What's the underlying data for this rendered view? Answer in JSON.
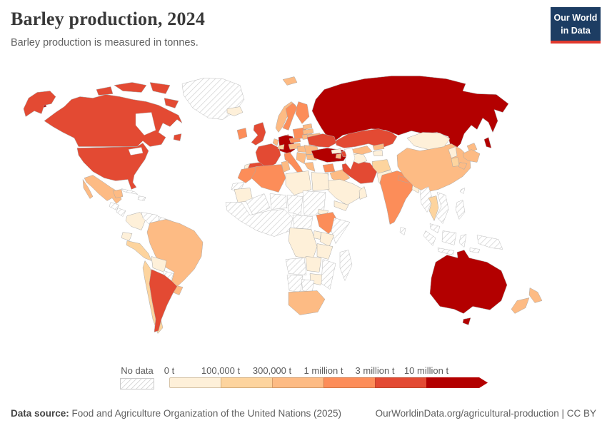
{
  "header": {
    "title": "Barley production, 2024",
    "subtitle": "Barley production is measured in tonnes."
  },
  "logo": {
    "line1": "Our World",
    "line2": "in Data",
    "bg_color": "#1d3d63",
    "accent_color": "#e0392e"
  },
  "footer": {
    "source_label": "Data source:",
    "source_text": " Food and Agriculture Organization of the United Nations (2025)",
    "link_text": "OurWorldinData.org/agricultural-production | CC BY"
  },
  "chart_data": {
    "type": "choropleth-map",
    "title": "Barley production, 2024",
    "unit": "tonnes",
    "projection": "World",
    "legend": {
      "no_data_label": "No data",
      "tick_labels": [
        "0 t",
        "100,000 t",
        "300,000 t",
        "1 million t",
        "3 million t",
        "10 million t"
      ],
      "bin_colors": [
        "#fef0d9",
        "#fdd49e",
        "#fdbb84",
        "#fc8d59",
        "#e34a33",
        "#b30000"
      ],
      "no_data_pattern": "gray-diagonal-hatch"
    },
    "bins_meaning": "bin index = production band between consecutive tick labels; 5 = 10 million t and above",
    "entities": [
      {
        "name": "Russia",
        "bin": 5
      },
      {
        "name": "Canada",
        "bin": 4
      },
      {
        "name": "United States",
        "bin": 4
      },
      {
        "name": "Greenland",
        "bin": "no_data"
      },
      {
        "name": "Mexico",
        "bin": 2
      },
      {
        "name": "Guatemala",
        "bin": "no_data"
      },
      {
        "name": "Nicaragua",
        "bin": "no_data"
      },
      {
        "name": "Cuba",
        "bin": "no_data"
      },
      {
        "name": "Haiti",
        "bin": "no_data"
      },
      {
        "name": "Colombia",
        "bin": 0
      },
      {
        "name": "Venezuela",
        "bin": "no_data"
      },
      {
        "name": "Guyana",
        "bin": "no_data"
      },
      {
        "name": "Ecuador",
        "bin": 0
      },
      {
        "name": "Peru",
        "bin": 1
      },
      {
        "name": "Brazil",
        "bin": 2
      },
      {
        "name": "Bolivia",
        "bin": 0
      },
      {
        "name": "Paraguay",
        "bin": "no_data"
      },
      {
        "name": "Uruguay",
        "bin": 2
      },
      {
        "name": "Chile",
        "bin": 1
      },
      {
        "name": "Argentina",
        "bin": 4
      },
      {
        "name": "Iceland",
        "bin": 0
      },
      {
        "name": "United Kingdom",
        "bin": 4
      },
      {
        "name": "Ireland",
        "bin": 3
      },
      {
        "name": "Portugal",
        "bin": 0
      },
      {
        "name": "Spain",
        "bin": 4
      },
      {
        "name": "France",
        "bin": 4
      },
      {
        "name": "Norway",
        "bin": 2
      },
      {
        "name": "Sweden",
        "bin": 3
      },
      {
        "name": "Finland",
        "bin": 3
      },
      {
        "name": "Denmark",
        "bin": 4
      },
      {
        "name": "Germany",
        "bin": 5
      },
      {
        "name": "Netherlands",
        "bin": 2
      },
      {
        "name": "Switzerland",
        "bin": 1
      },
      {
        "name": "Italy",
        "bin": 3
      },
      {
        "name": "Austria",
        "bin": 2
      },
      {
        "name": "Czechia",
        "bin": 3
      },
      {
        "name": "Poland",
        "bin": 3
      },
      {
        "name": "Estonia",
        "bin": 2
      },
      {
        "name": "Latvia",
        "bin": 2
      },
      {
        "name": "Lithuania",
        "bin": 2
      },
      {
        "name": "Belarus",
        "bin": 2
      },
      {
        "name": "Ukraine",
        "bin": 4
      },
      {
        "name": "Hungary",
        "bin": 2
      },
      {
        "name": "Romania",
        "bin": 2
      },
      {
        "name": "Serbia",
        "bin": 2
      },
      {
        "name": "Bulgaria",
        "bin": 2
      },
      {
        "name": "Greece",
        "bin": 2
      },
      {
        "name": "Turkey",
        "bin": 5
      },
      {
        "name": "Georgia",
        "bin": 0
      },
      {
        "name": "Azerbaijan",
        "bin": 4
      },
      {
        "name": "Armenia",
        "bin": 2
      },
      {
        "name": "Syria",
        "bin": 3
      },
      {
        "name": "Iraq",
        "bin": 2
      },
      {
        "name": "Jordan",
        "bin": 0
      },
      {
        "name": "Saudi Arabia",
        "bin": 0
      },
      {
        "name": "Yemen",
        "bin": 0
      },
      {
        "name": "Oman",
        "bin": 0
      },
      {
        "name": "Iran",
        "bin": 4
      },
      {
        "name": "Kazakhstan",
        "bin": 4
      },
      {
        "name": "Turkmenistan",
        "bin": 0
      },
      {
        "name": "Uzbekistan",
        "bin": 2
      },
      {
        "name": "Kyrgyzstan",
        "bin": 2
      },
      {
        "name": "Tajikistan",
        "bin": 0
      },
      {
        "name": "Afghanistan",
        "bin": 1
      },
      {
        "name": "Pakistan",
        "bin": 0
      },
      {
        "name": "India",
        "bin": 3
      },
      {
        "name": "Nepal",
        "bin": 3
      },
      {
        "name": "Bangladesh",
        "bin": 0
      },
      {
        "name": "Sri Lanka",
        "bin": "no_data"
      },
      {
        "name": "China",
        "bin": 2
      },
      {
        "name": "Mongolia",
        "bin": 0
      },
      {
        "name": "North Korea",
        "bin": 0
      },
      {
        "name": "South Korea",
        "bin": 1
      },
      {
        "name": "Japan",
        "bin": 2
      },
      {
        "name": "Taiwan",
        "bin": "no_data"
      },
      {
        "name": "Myanmar",
        "bin": "no_data"
      },
      {
        "name": "Thailand",
        "bin": 1
      },
      {
        "name": "Vietnam",
        "bin": "no_data"
      },
      {
        "name": "Malaysia",
        "bin": "no_data"
      },
      {
        "name": "Indonesia",
        "bin": "no_data"
      },
      {
        "name": "Philippines",
        "bin": "no_data"
      },
      {
        "name": "Papua New Guinea",
        "bin": "no_data"
      },
      {
        "name": "Morocco",
        "bin": 3
      },
      {
        "name": "Western Sahara",
        "bin": "no_data"
      },
      {
        "name": "Algeria",
        "bin": 3
      },
      {
        "name": "Tunisia",
        "bin": 2
      },
      {
        "name": "Libya",
        "bin": 0
      },
      {
        "name": "Egypt",
        "bin": 0
      },
      {
        "name": "Mauritania",
        "bin": 0
      },
      {
        "name": "Mali",
        "bin": "no_data"
      },
      {
        "name": "Niger",
        "bin": "no_data"
      },
      {
        "name": "Chad",
        "bin": "no_data"
      },
      {
        "name": "Sudan",
        "bin": "no_data"
      },
      {
        "name": "Nigeria",
        "bin": "no_data"
      },
      {
        "name": "Central African Republic",
        "bin": "no_data"
      },
      {
        "name": "Eritrea",
        "bin": 0
      },
      {
        "name": "Ethiopia",
        "bin": 3
      },
      {
        "name": "Somalia",
        "bin": "no_data"
      },
      {
        "name": "Kenya",
        "bin": 0
      },
      {
        "name": "Uganda",
        "bin": 0
      },
      {
        "name": "Tanzania",
        "bin": 0
      },
      {
        "name": "DR Congo",
        "bin": 0
      },
      {
        "name": "Angola",
        "bin": "no_data"
      },
      {
        "name": "Zambia",
        "bin": 0
      },
      {
        "name": "Zimbabwe",
        "bin": 0
      },
      {
        "name": "Mozambique",
        "bin": "no_data"
      },
      {
        "name": "Namibia",
        "bin": "no_data"
      },
      {
        "name": "Botswana",
        "bin": "no_data"
      },
      {
        "name": "South Africa",
        "bin": 2
      },
      {
        "name": "Madagascar",
        "bin": "no_data"
      },
      {
        "name": "Australia",
        "bin": 5
      },
      {
        "name": "New Zealand",
        "bin": 2
      }
    ]
  }
}
